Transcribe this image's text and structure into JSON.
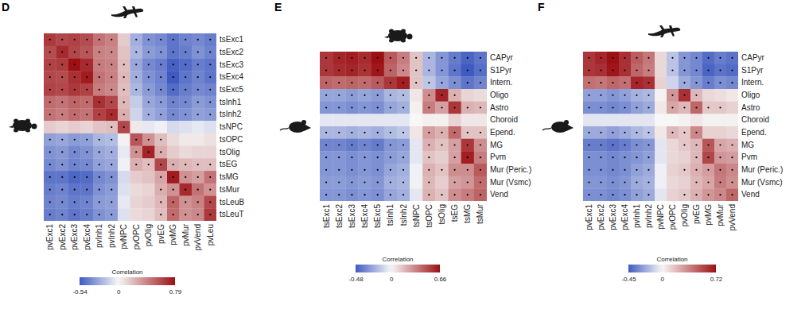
{
  "chart_data": [
    {
      "type": "heatmap",
      "title": "D",
      "x": [
        "pvExc1",
        "pvExc2",
        "pvExc3",
        "pvExc4",
        "pvInh1",
        "pvInh2",
        "pvNPC",
        "pvOPC",
        "pvOlig",
        "pvEG",
        "pvMG",
        "pvMur",
        "pvVend",
        "pvLeu"
      ],
      "y": [
        "tsExc1",
        "tsExc2",
        "tsExc3",
        "tsExc4",
        "tsExc5",
        "tsInh1",
        "tsInh2",
        "tsNPC",
        "tsOPC",
        "tsOlig",
        "tsEG",
        "tsMG",
        "tsMur",
        "tsLeuB",
        "tsLeuT"
      ],
      "values": [
        [
          0.65,
          0.6,
          0.62,
          0.58,
          0.45,
          0.4,
          0.15,
          -0.25,
          -0.35,
          -0.38,
          -0.45,
          -0.4,
          -0.38,
          -0.42
        ],
        [
          0.58,
          0.7,
          0.6,
          0.55,
          0.4,
          0.38,
          0.18,
          -0.22,
          -0.32,
          -0.35,
          -0.45,
          -0.42,
          -0.35,
          -0.4
        ],
        [
          0.62,
          0.64,
          0.79,
          0.7,
          0.42,
          0.4,
          0.2,
          -0.28,
          -0.38,
          -0.42,
          -0.52,
          -0.48,
          -0.42,
          -0.45
        ],
        [
          0.6,
          0.58,
          0.68,
          0.75,
          0.45,
          0.4,
          0.22,
          -0.25,
          -0.35,
          -0.4,
          -0.54,
          -0.45,
          -0.4,
          -0.45
        ],
        [
          0.62,
          0.6,
          0.65,
          0.62,
          0.42,
          0.38,
          0.2,
          -0.22,
          -0.32,
          -0.38,
          -0.48,
          -0.42,
          -0.38,
          -0.4
        ],
        [
          0.48,
          0.45,
          0.5,
          0.48,
          0.68,
          0.6,
          0.22,
          -0.15,
          -0.28,
          -0.32,
          -0.4,
          -0.38,
          -0.32,
          -0.35
        ],
        [
          0.45,
          0.42,
          0.48,
          0.45,
          0.62,
          0.7,
          0.25,
          -0.12,
          -0.25,
          -0.3,
          -0.38,
          -0.35,
          -0.3,
          -0.32
        ],
        [
          0.15,
          0.12,
          0.15,
          0.12,
          0.18,
          0.2,
          0.6,
          0.05,
          -0.05,
          -0.02,
          -0.1,
          -0.08,
          -0.05,
          -0.08
        ],
        [
          -0.3,
          -0.28,
          -0.32,
          -0.3,
          -0.22,
          -0.2,
          0.02,
          0.55,
          0.35,
          0.2,
          0.1,
          0.05,
          0.05,
          0.08
        ],
        [
          -0.35,
          -0.33,
          -0.38,
          -0.35,
          -0.28,
          -0.25,
          -0.05,
          0.35,
          0.72,
          0.25,
          0.15,
          0.1,
          0.12,
          0.12
        ],
        [
          -0.38,
          -0.35,
          -0.4,
          -0.38,
          -0.3,
          -0.28,
          -0.02,
          0.25,
          0.2,
          0.6,
          0.25,
          0.22,
          0.2,
          0.2
        ],
        [
          -0.45,
          -0.45,
          -0.5,
          -0.48,
          -0.38,
          -0.35,
          -0.1,
          0.15,
          0.18,
          0.28,
          0.75,
          0.35,
          0.3,
          0.45
        ],
        [
          -0.42,
          -0.4,
          -0.45,
          -0.45,
          -0.35,
          -0.32,
          -0.08,
          0.1,
          0.12,
          0.25,
          0.35,
          0.7,
          0.45,
          0.35
        ],
        [
          -0.4,
          -0.38,
          -0.42,
          -0.4,
          -0.32,
          -0.3,
          -0.05,
          0.12,
          0.15,
          0.22,
          0.5,
          0.35,
          0.4,
          0.6
        ],
        [
          -0.42,
          -0.4,
          -0.45,
          -0.42,
          -0.35,
          -0.32,
          -0.08,
          0.1,
          0.12,
          0.2,
          0.48,
          0.35,
          0.38,
          0.65
        ]
      ],
      "significant": [
        [
          1,
          1,
          1,
          1,
          1,
          1,
          0,
          1,
          1,
          1,
          1,
          1,
          1,
          1
        ],
        [
          1,
          1,
          1,
          1,
          1,
          1,
          0,
          1,
          1,
          1,
          1,
          1,
          1,
          1
        ],
        [
          1,
          1,
          1,
          1,
          1,
          1,
          1,
          1,
          1,
          1,
          1,
          1,
          1,
          1
        ],
        [
          1,
          1,
          1,
          1,
          1,
          1,
          1,
          1,
          1,
          1,
          1,
          1,
          1,
          1
        ],
        [
          1,
          1,
          1,
          1,
          1,
          1,
          1,
          1,
          1,
          1,
          1,
          1,
          1,
          1
        ],
        [
          1,
          1,
          1,
          1,
          1,
          1,
          1,
          0,
          1,
          1,
          1,
          1,
          1,
          1
        ],
        [
          1,
          1,
          1,
          1,
          1,
          1,
          1,
          0,
          1,
          1,
          1,
          1,
          1,
          1
        ],
        [
          0,
          0,
          0,
          0,
          0,
          1,
          1,
          0,
          0,
          0,
          0,
          0,
          0,
          0
        ],
        [
          1,
          1,
          1,
          1,
          1,
          1,
          0,
          1,
          1,
          1,
          0,
          0,
          0,
          0
        ],
        [
          1,
          1,
          1,
          1,
          1,
          1,
          0,
          1,
          1,
          1,
          0,
          0,
          0,
          0
        ],
        [
          1,
          1,
          1,
          1,
          1,
          1,
          0,
          1,
          1,
          1,
          1,
          1,
          1,
          1
        ],
        [
          1,
          1,
          1,
          1,
          1,
          1,
          0,
          0,
          0,
          1,
          1,
          1,
          1,
          1
        ],
        [
          1,
          1,
          1,
          1,
          1,
          1,
          0,
          0,
          0,
          1,
          1,
          1,
          1,
          1
        ],
        [
          1,
          1,
          1,
          1,
          1,
          1,
          0,
          0,
          0,
          1,
          1,
          1,
          1,
          1
        ],
        [
          1,
          1,
          1,
          1,
          1,
          1,
          0,
          0,
          0,
          1,
          1,
          1,
          1,
          1
        ]
      ],
      "colorbar": {
        "title": "Correlation",
        "range": [
          -0.54,
          0.79
        ],
        "ticks": [
          -0.54,
          0,
          0.79
        ]
      }
    },
    {
      "type": "heatmap",
      "title": "E",
      "x": [
        "tsExc1",
        "tsExc2",
        "tsExc3",
        "tsExc4",
        "tsExc5",
        "tsInh1",
        "tsInh2",
        "tsNPC",
        "tsOPC",
        "tsOlig",
        "tsEG",
        "tsMG",
        "tsMur"
      ],
      "y": [
        "CAPyr",
        "S1Pyr",
        "Intern.",
        "Oligo",
        "Astro",
        "Choroid",
        "Epend.",
        "MG",
        "Pvm",
        "Mur (Peric.)",
        "Mur (Vsmc)",
        "Vend"
      ],
      "values": [
        [
          0.55,
          0.6,
          0.62,
          0.58,
          0.66,
          0.45,
          0.35,
          0.15,
          -0.2,
          -0.3,
          -0.38,
          -0.45,
          -0.4
        ],
        [
          0.55,
          0.58,
          0.6,
          0.56,
          0.64,
          0.42,
          0.32,
          0.15,
          -0.2,
          -0.3,
          -0.4,
          -0.48,
          -0.42
        ],
        [
          0.42,
          0.4,
          0.42,
          0.4,
          0.45,
          0.55,
          0.62,
          0.15,
          -0.15,
          -0.25,
          -0.32,
          -0.4,
          -0.35
        ],
        [
          -0.25,
          -0.25,
          -0.28,
          -0.25,
          -0.28,
          -0.2,
          -0.18,
          0.05,
          0.3,
          0.6,
          0.2,
          0.1,
          0.08
        ],
        [
          -0.3,
          -0.3,
          -0.32,
          -0.3,
          -0.32,
          -0.25,
          -0.22,
          0.02,
          0.35,
          0.25,
          0.55,
          0.2,
          0.18
        ],
        [
          -0.05,
          -0.05,
          -0.05,
          -0.05,
          -0.05,
          -0.05,
          -0.05,
          0.0,
          0.02,
          0.02,
          0.1,
          0.05,
          0.05
        ],
        [
          -0.2,
          -0.2,
          -0.22,
          -0.2,
          -0.22,
          -0.18,
          -0.15,
          0.05,
          0.25,
          0.2,
          0.4,
          0.15,
          0.15
        ],
        [
          -0.35,
          -0.35,
          -0.38,
          -0.35,
          -0.38,
          -0.3,
          -0.28,
          -0.05,
          0.2,
          0.15,
          0.25,
          0.55,
          0.3
        ],
        [
          -0.3,
          -0.3,
          -0.32,
          -0.3,
          -0.32,
          -0.28,
          -0.25,
          -0.05,
          0.15,
          0.12,
          0.25,
          0.62,
          0.35
        ],
        [
          -0.3,
          -0.3,
          -0.32,
          -0.3,
          -0.32,
          -0.25,
          -0.22,
          -0.02,
          0.2,
          0.15,
          0.3,
          0.3,
          0.45
        ],
        [
          -0.28,
          -0.28,
          -0.3,
          -0.28,
          -0.3,
          -0.22,
          -0.2,
          -0.02,
          0.18,
          0.12,
          0.25,
          0.28,
          0.4
        ],
        [
          -0.3,
          -0.3,
          -0.32,
          -0.3,
          -0.32,
          -0.25,
          -0.22,
          -0.05,
          0.2,
          0.15,
          0.3,
          0.35,
          0.42
        ]
      ],
      "significant": [
        [
          1,
          1,
          1,
          1,
          1,
          1,
          1,
          1,
          1,
          1,
          1,
          1,
          1
        ],
        [
          1,
          1,
          1,
          1,
          1,
          1,
          1,
          1,
          1,
          1,
          1,
          1,
          1
        ],
        [
          1,
          1,
          1,
          1,
          1,
          1,
          1,
          1,
          1,
          1,
          1,
          1,
          1
        ],
        [
          1,
          1,
          1,
          1,
          1,
          1,
          1,
          0,
          1,
          1,
          1,
          0,
          0
        ],
        [
          1,
          1,
          1,
          1,
          1,
          1,
          1,
          0,
          1,
          1,
          1,
          1,
          1
        ],
        [
          0,
          0,
          0,
          0,
          0,
          0,
          0,
          0,
          0,
          0,
          0,
          0,
          0
        ],
        [
          1,
          1,
          1,
          1,
          1,
          1,
          1,
          0,
          1,
          1,
          1,
          1,
          1
        ],
        [
          1,
          1,
          1,
          1,
          1,
          1,
          1,
          0,
          1,
          1,
          1,
          1,
          1
        ],
        [
          1,
          1,
          1,
          1,
          1,
          1,
          1,
          0,
          1,
          0,
          1,
          1,
          1
        ],
        [
          1,
          1,
          1,
          1,
          1,
          1,
          1,
          0,
          1,
          1,
          1,
          1,
          1
        ],
        [
          1,
          1,
          1,
          1,
          1,
          1,
          1,
          0,
          1,
          0,
          1,
          1,
          1
        ],
        [
          1,
          1,
          1,
          1,
          1,
          1,
          1,
          0,
          1,
          1,
          1,
          1,
          1
        ]
      ],
      "colorbar": {
        "title": "Correlation",
        "range": [
          -0.48,
          0.66
        ],
        "ticks": [
          -0.48,
          0,
          0.66
        ]
      }
    },
    {
      "type": "heatmap",
      "title": "F",
      "x": [
        "pvExc1",
        "pvExc2",
        "pvExc3",
        "pvExc4",
        "pvInh1",
        "pvInh2",
        "pvNPC",
        "pvOPC",
        "pvOlig",
        "pvEG",
        "pvMG",
        "pvMur",
        "pvVend"
      ],
      "y": [
        "CAPyr",
        "S1Pyr",
        "Intern.",
        "Oligo",
        "Astro",
        "Choroid",
        "Epend.",
        "MG",
        "Pvm",
        "Mur (Peric.)",
        "Mur (Vsmc)",
        "Vend"
      ],
      "values": [
        [
          0.6,
          0.65,
          0.72,
          0.62,
          0.48,
          0.4,
          0.1,
          -0.15,
          -0.28,
          -0.32,
          -0.4,
          -0.35,
          -0.38
        ],
        [
          0.6,
          0.62,
          0.7,
          0.62,
          0.45,
          0.38,
          0.1,
          -0.15,
          -0.28,
          -0.32,
          -0.42,
          -0.38,
          -0.4
        ],
        [
          0.42,
          0.4,
          0.45,
          0.42,
          0.65,
          0.62,
          0.12,
          -0.1,
          -0.22,
          -0.28,
          -0.35,
          -0.3,
          -0.32
        ],
        [
          -0.25,
          -0.25,
          -0.28,
          -0.25,
          -0.2,
          -0.18,
          0.02,
          0.3,
          0.62,
          0.2,
          0.1,
          0.08,
          0.05
        ],
        [
          -0.3,
          -0.3,
          -0.32,
          -0.3,
          -0.25,
          -0.22,
          0.05,
          0.25,
          0.2,
          0.45,
          0.15,
          0.15,
          0.12
        ],
        [
          -0.05,
          -0.05,
          -0.05,
          -0.05,
          -0.05,
          -0.05,
          0.0,
          0.0,
          0.02,
          0.05,
          0.02,
          0.02,
          0.02
        ],
        [
          -0.22,
          -0.22,
          -0.25,
          -0.22,
          -0.18,
          -0.15,
          0.05,
          0.2,
          0.15,
          0.35,
          0.12,
          0.12,
          0.1
        ],
        [
          -0.35,
          -0.35,
          -0.38,
          -0.35,
          -0.3,
          -0.28,
          -0.05,
          0.1,
          0.15,
          0.2,
          0.5,
          0.25,
          0.22
        ],
        [
          -0.3,
          -0.3,
          -0.32,
          -0.3,
          -0.28,
          -0.25,
          -0.05,
          0.1,
          0.12,
          0.2,
          0.55,
          0.3,
          0.28
        ],
        [
          -0.3,
          -0.3,
          -0.32,
          -0.3,
          -0.25,
          -0.22,
          -0.02,
          0.12,
          0.15,
          0.22,
          0.28,
          0.4,
          0.35
        ],
        [
          -0.28,
          -0.28,
          -0.3,
          -0.28,
          -0.22,
          -0.2,
          -0.02,
          0.1,
          0.12,
          0.2,
          0.25,
          0.38,
          0.32
        ],
        [
          -0.3,
          -0.3,
          -0.32,
          -0.3,
          -0.25,
          -0.22,
          -0.05,
          0.12,
          0.15,
          0.22,
          0.3,
          0.35,
          0.45
        ]
      ],
      "significant": [
        [
          1,
          1,
          1,
          1,
          1,
          1,
          0,
          1,
          1,
          1,
          1,
          1,
          1
        ],
        [
          1,
          1,
          1,
          1,
          1,
          1,
          0,
          1,
          1,
          1,
          1,
          1,
          1
        ],
        [
          1,
          1,
          1,
          1,
          1,
          1,
          0,
          0,
          1,
          1,
          1,
          1,
          1
        ],
        [
          1,
          1,
          1,
          1,
          1,
          1,
          0,
          1,
          1,
          1,
          0,
          0,
          0
        ],
        [
          1,
          1,
          1,
          1,
          1,
          1,
          0,
          1,
          1,
          1,
          1,
          1,
          0
        ],
        [
          0,
          0,
          0,
          0,
          0,
          0,
          0,
          0,
          0,
          0,
          0,
          0,
          0
        ],
        [
          1,
          1,
          1,
          1,
          1,
          1,
          0,
          1,
          1,
          1,
          0,
          0,
          0
        ],
        [
          1,
          1,
          1,
          1,
          1,
          1,
          0,
          0,
          1,
          1,
          1,
          1,
          1
        ],
        [
          1,
          1,
          1,
          1,
          1,
          1,
          0,
          0,
          0,
          1,
          1,
          1,
          1
        ],
        [
          1,
          1,
          1,
          1,
          1,
          1,
          0,
          0,
          1,
          1,
          1,
          1,
          1
        ],
        [
          1,
          1,
          1,
          1,
          1,
          1,
          0,
          0,
          0,
          1,
          1,
          1,
          1
        ],
        [
          1,
          1,
          1,
          1,
          1,
          1,
          0,
          0,
          1,
          1,
          1,
          1,
          1
        ]
      ],
      "colorbar": {
        "title": "Correlation",
        "range": [
          -0.45,
          0.72
        ],
        "ticks": [
          -0.45,
          0,
          0.72
        ]
      }
    }
  ]
}
